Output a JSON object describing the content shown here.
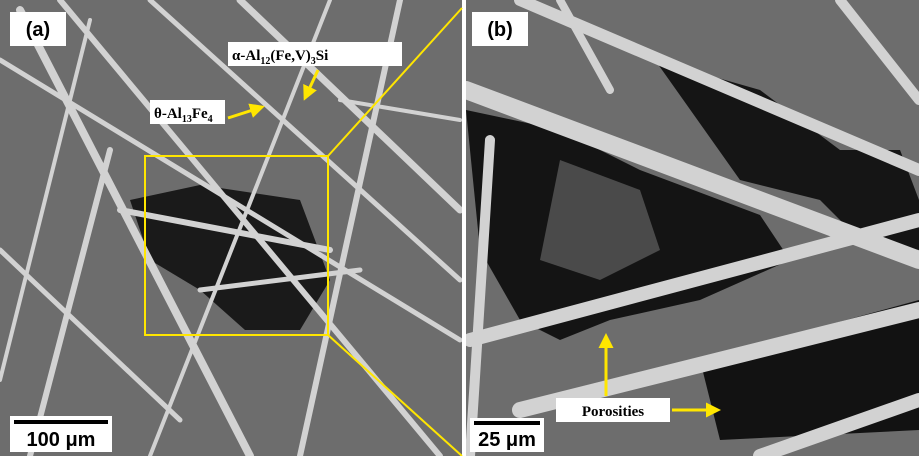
{
  "panels": [
    {
      "label": "(a)",
      "scale": "100 μm",
      "annotations": [
        [
          {
            "text": "α-Al"
          },
          {
            "text": "12",
            "sub": true
          },
          {
            "text": "(Fe,V)"
          },
          {
            "text": "3",
            "sub": true
          },
          {
            "text": "Si"
          }
        ],
        [
          {
            "text": "θ-Al"
          },
          {
            "text": "13",
            "sub": true
          },
          {
            "text": "Fe"
          },
          {
            "text": "4",
            "sub": true
          }
        ]
      ]
    },
    {
      "label": "(b)",
      "scale": "25 μm",
      "annotations": [
        [
          {
            "text": "Porosities"
          }
        ]
      ]
    }
  ]
}
